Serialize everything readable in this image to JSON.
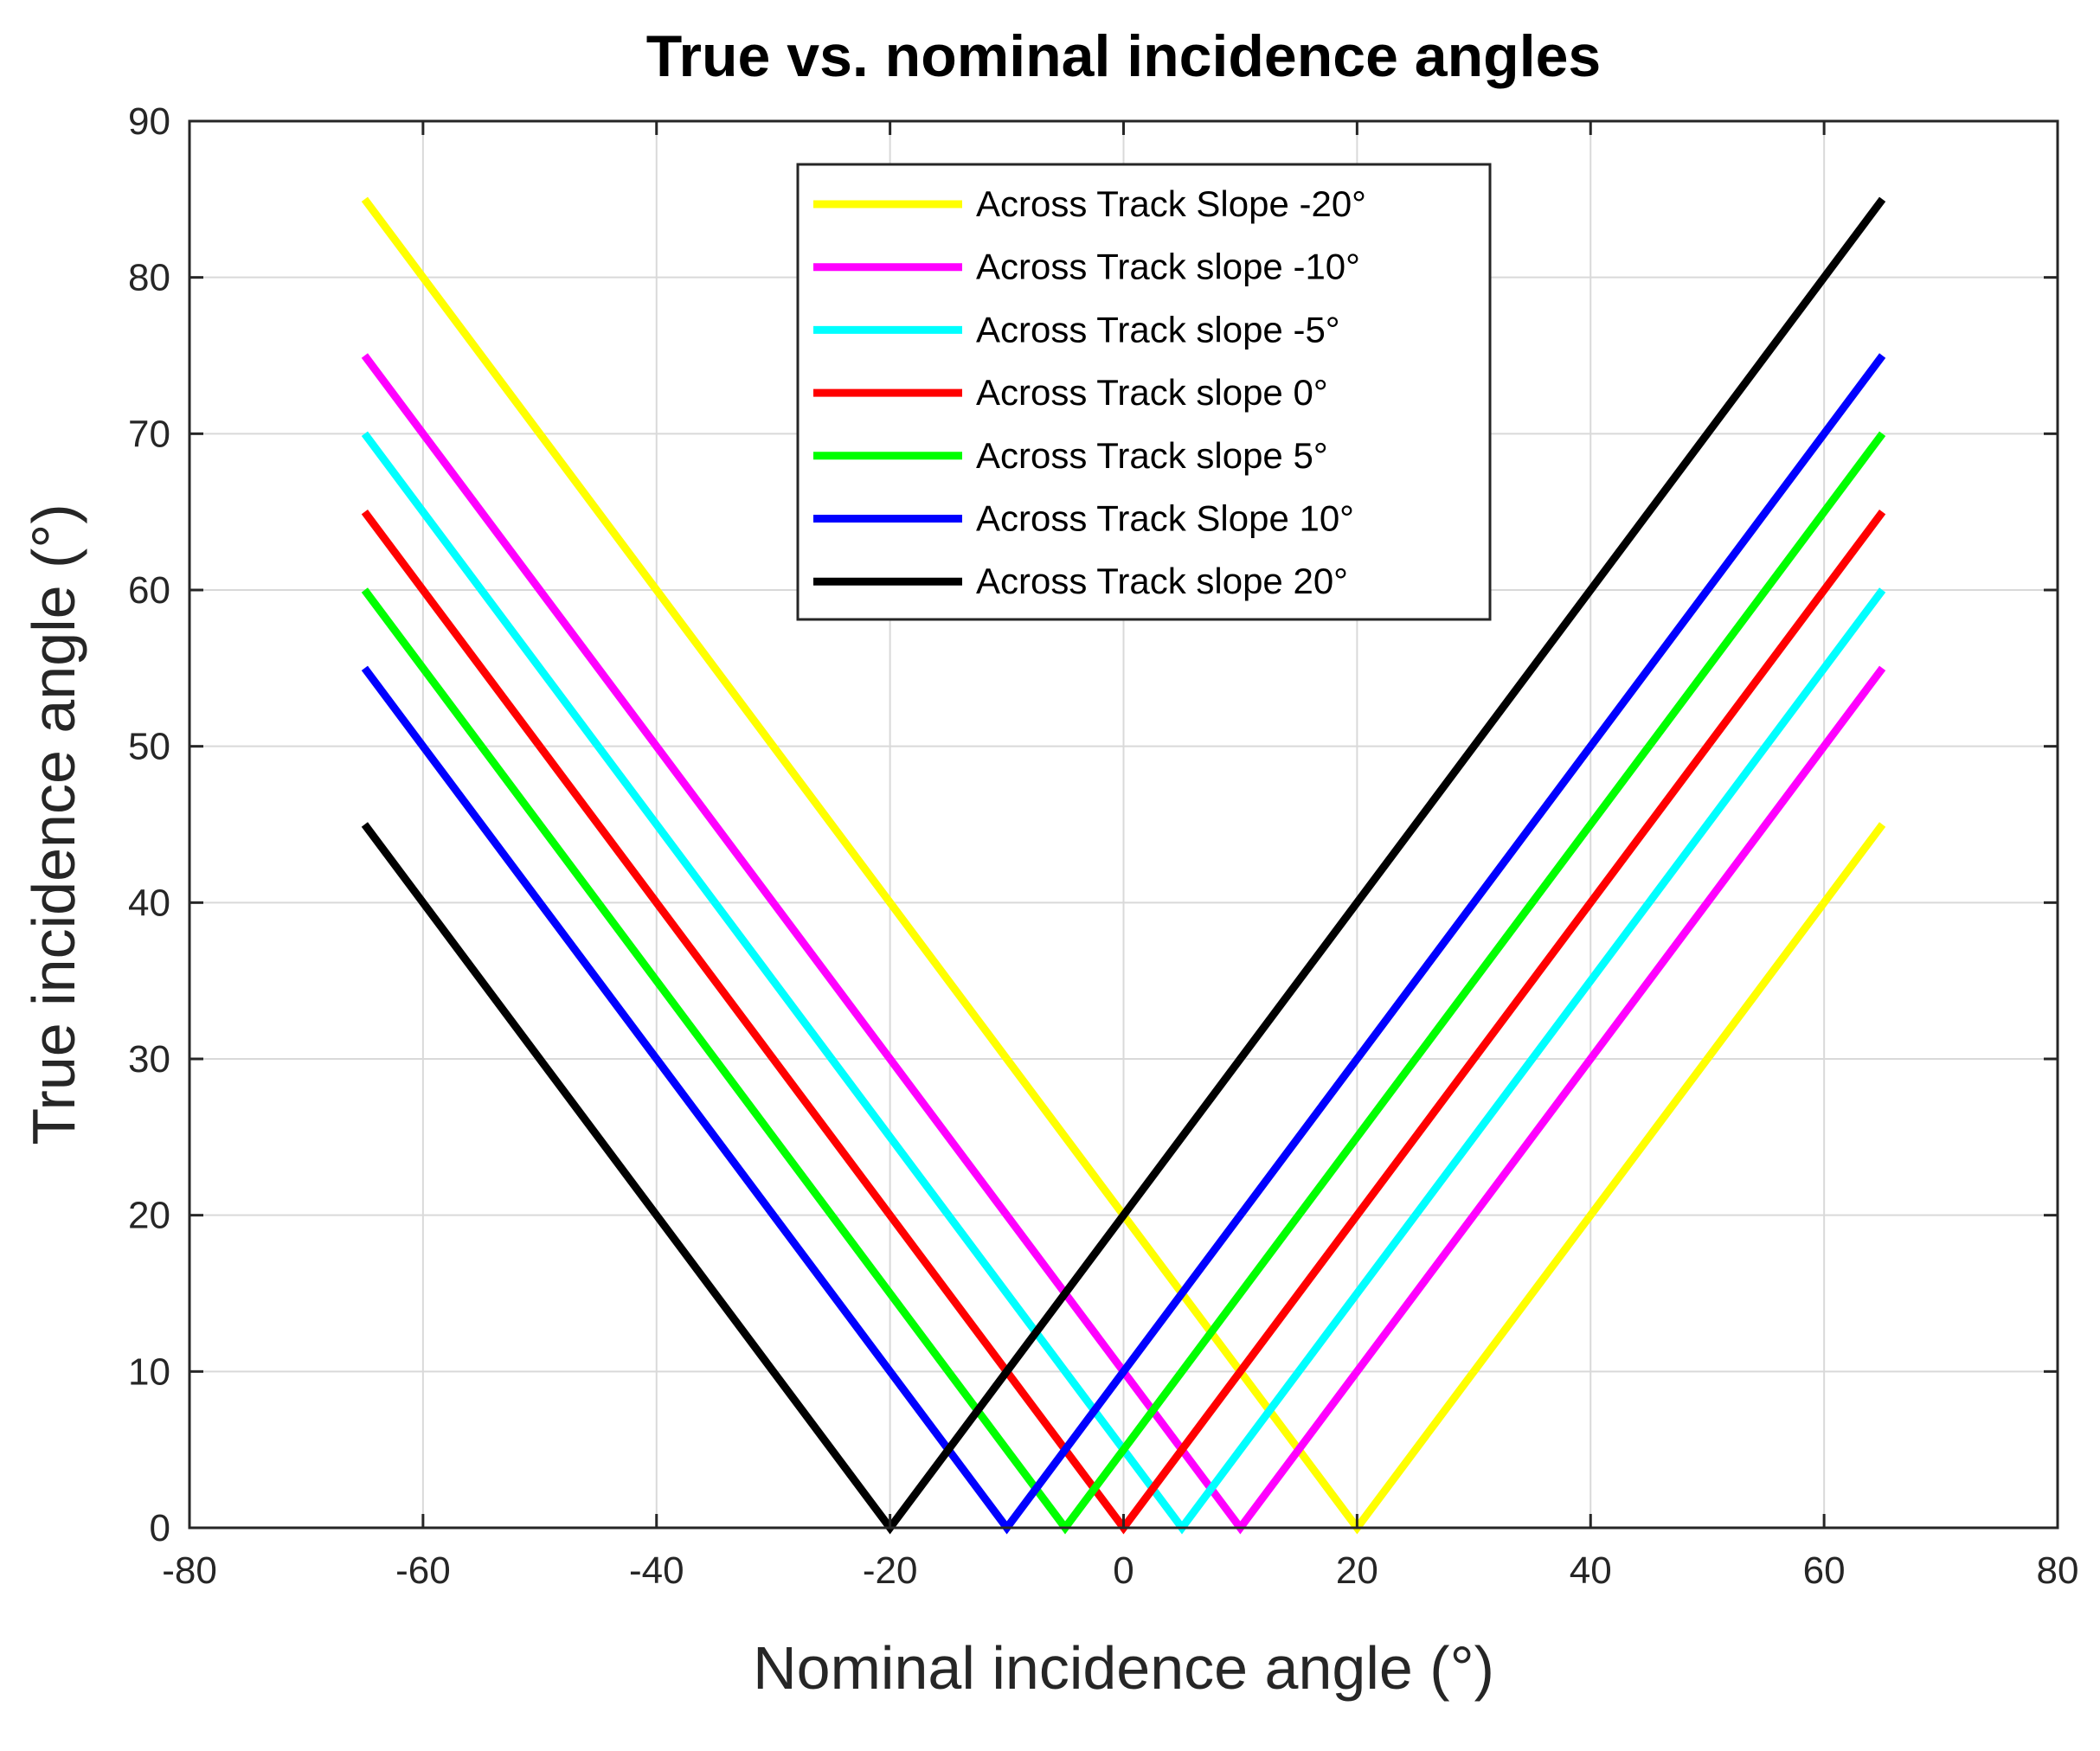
{
  "chart_data": {
    "type": "line",
    "title": "True vs. nominal incidence angles",
    "xlabel": "Nominal incidence angle (°)",
    "ylabel": "True incidence angle (°)",
    "xlim": [
      -80,
      80
    ],
    "ylim": [
      0,
      90
    ],
    "xticks": [
      -80,
      -60,
      -40,
      -20,
      0,
      20,
      40,
      60,
      80
    ],
    "yticks": [
      0,
      10,
      20,
      30,
      40,
      50,
      60,
      70,
      80,
      90
    ],
    "xtick_labels": [
      "-80",
      "-60",
      "-40",
      "-20",
      "0",
      "20",
      "40",
      "60",
      "80"
    ],
    "ytick_labels": [
      "0",
      "10",
      "20",
      "30",
      "40",
      "50",
      "60",
      "70",
      "80",
      "90"
    ],
    "grid": true,
    "legend_position": "top-center",
    "series": [
      {
        "name": "Across Track Slope -20°",
        "color": "#ffff00",
        "x": [
          -65,
          20,
          65
        ],
        "y": [
          85,
          0,
          45
        ]
      },
      {
        "name": "Across Track slope -10°",
        "color": "#ff00ff",
        "x": [
          -65,
          10,
          65
        ],
        "y": [
          75,
          0,
          55
        ]
      },
      {
        "name": "Across Track slope -5°",
        "color": "#00ffff",
        "x": [
          -65,
          5,
          65
        ],
        "y": [
          70,
          0,
          60
        ]
      },
      {
        "name": "Across Track slope 0°",
        "color": "#ff0000",
        "x": [
          -65,
          0,
          65
        ],
        "y": [
          65,
          0,
          65
        ]
      },
      {
        "name": "Across Track slope 5°",
        "color": "#00ff00",
        "x": [
          -65,
          -5,
          65
        ],
        "y": [
          60,
          0,
          70
        ]
      },
      {
        "name": "Across Track Slope 10°",
        "color": "#0000ff",
        "x": [
          -65,
          -10,
          65
        ],
        "y": [
          55,
          0,
          75
        ]
      },
      {
        "name": "Across Track slope 20°",
        "color": "#000000",
        "x": [
          -65,
          -20,
          65
        ],
        "y": [
          45,
          0,
          85
        ]
      }
    ]
  }
}
